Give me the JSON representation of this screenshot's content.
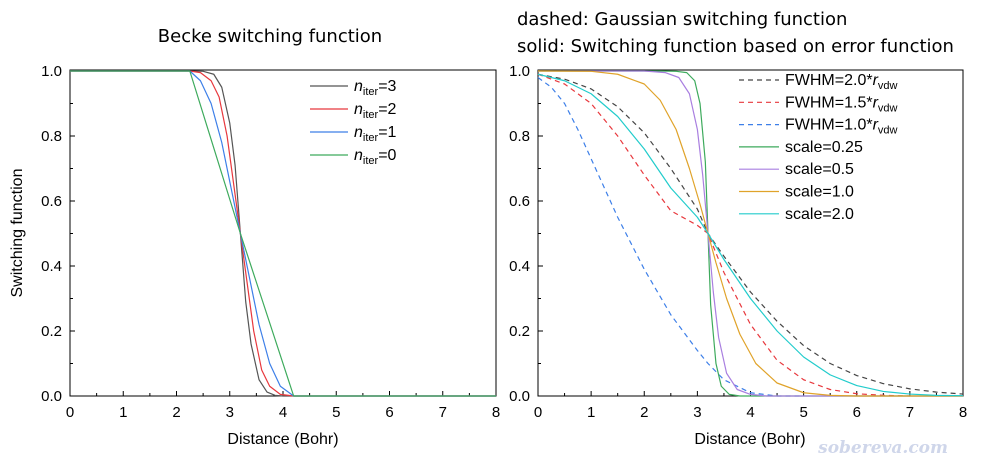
{
  "watermark": "sobereva.com",
  "chart_data": [
    {
      "type": "line",
      "title": "Becke switching function",
      "xlabel": "Distance (Bohr)",
      "ylabel": "Switching function",
      "xlim": [
        0,
        8
      ],
      "ylim": [
        0,
        1
      ],
      "xticks": [
        "0",
        "1",
        "2",
        "3",
        "4",
        "5",
        "6",
        "7",
        "8"
      ],
      "yticks": [
        "0.0",
        "0.2",
        "0.4",
        "0.6",
        "0.8",
        "1.0"
      ],
      "legend_position": "top-right",
      "series": [
        {
          "name_main": "n",
          "name_sub": "iter",
          "name_tail": "=3",
          "color": "#555555",
          "dash": "solid",
          "x": [
            0,
            2.25,
            2.5,
            2.7,
            2.85,
            3.0,
            3.1,
            3.2,
            3.3,
            3.4,
            3.55,
            3.7,
            3.85,
            4.0,
            4.2,
            8
          ],
          "y": [
            1.0,
            1.0,
            0.999,
            0.99,
            0.95,
            0.84,
            0.71,
            0.5,
            0.29,
            0.16,
            0.05,
            0.012,
            0.002,
            0.0,
            0.0,
            0.0
          ]
        },
        {
          "name_main": "n",
          "name_sub": "iter",
          "name_tail": "=2",
          "color": "#e8383d",
          "dash": "solid",
          "x": [
            0,
            2.25,
            2.45,
            2.65,
            2.8,
            2.95,
            3.1,
            3.2,
            3.3,
            3.45,
            3.6,
            3.75,
            3.95,
            4.2,
            8
          ],
          "y": [
            1.0,
            1.0,
            0.995,
            0.97,
            0.92,
            0.8,
            0.62,
            0.5,
            0.38,
            0.2,
            0.08,
            0.03,
            0.005,
            0.0,
            0.0
          ]
        },
        {
          "name_main": "n",
          "name_sub": "iter",
          "name_tail": "=1",
          "color": "#3d7fe8",
          "dash": "solid",
          "x": [
            0,
            2.25,
            2.45,
            2.65,
            2.85,
            3.05,
            3.2,
            3.35,
            3.55,
            3.75,
            3.95,
            4.2,
            8
          ],
          "y": [
            1.0,
            1.0,
            0.97,
            0.9,
            0.78,
            0.62,
            0.5,
            0.38,
            0.22,
            0.1,
            0.03,
            0.0,
            0.0
          ]
        },
        {
          "name_main": "n",
          "name_sub": "iter",
          "name_tail": "=0",
          "color": "#3daa5c",
          "dash": "solid",
          "x": [
            0,
            2.25,
            3.2,
            4.2,
            8
          ],
          "y": [
            1.0,
            1.0,
            0.5,
            0.0,
            0.0
          ]
        }
      ]
    },
    {
      "type": "line",
      "title": "dashed: Gaussian switching function",
      "subtitle": "solid: Switching function based on error function",
      "xlabel": "Distance (Bohr)",
      "ylabel": "",
      "xlim": [
        0,
        8
      ],
      "ylim": [
        0,
        1
      ],
      "xticks": [
        "0",
        "1",
        "2",
        "3",
        "4",
        "5",
        "6",
        "7",
        "8"
      ],
      "yticks": [
        "0.0",
        "0.2",
        "0.4",
        "0.6",
        "0.8",
        "1.0"
      ],
      "legend_position": "top-right",
      "series": [
        {
          "name_main": "FWHM=2.0*r",
          "name_sub": "vdw",
          "color": "#444444",
          "dash": "dashed",
          "x": [
            0,
            0.5,
            1.0,
            1.5,
            2.0,
            2.5,
            3.0,
            3.2,
            3.5,
            4.0,
            4.5,
            5.0,
            5.5,
            6.0,
            6.5,
            7.0,
            7.5,
            8.0
          ],
          "y": [
            0.99,
            0.975,
            0.945,
            0.89,
            0.81,
            0.7,
            0.575,
            0.5,
            0.43,
            0.32,
            0.23,
            0.155,
            0.1,
            0.063,
            0.038,
            0.022,
            0.012,
            0.006
          ]
        },
        {
          "name_main": "FWHM=1.5*r",
          "name_sub": "vdw",
          "color": "#e8383d",
          "dash": "dashed",
          "x": [
            0,
            0.5,
            1.0,
            1.5,
            2.0,
            2.5,
            3.0,
            3.2,
            3.5,
            4.0,
            4.5,
            5.0,
            5.5,
            6.0,
            6.5,
            7.0
          ],
          "y": [
            0.99,
            0.96,
            0.9,
            0.8,
            0.68,
            0.57,
            0.525,
            0.5,
            0.38,
            0.22,
            0.11,
            0.05,
            0.02,
            0.007,
            0.002,
            0.0
          ]
        },
        {
          "name_main": "FWHM=1.0*r",
          "name_sub": "vdw",
          "color": "#3d7fe8",
          "dash": "dashed",
          "x": [
            0,
            0.25,
            0.5,
            0.75,
            1.0,
            1.5,
            2.0,
            2.5,
            3.0,
            3.2,
            3.5,
            4.0,
            4.5,
            5.0
          ],
          "y": [
            0.98,
            0.95,
            0.9,
            0.82,
            0.73,
            0.55,
            0.39,
            0.25,
            0.14,
            0.1,
            0.05,
            0.01,
            0.0,
            0.0
          ]
        },
        {
          "name_main": "scale=0.25",
          "color": "#3daa5c",
          "dash": "solid",
          "x": [
            0,
            2.3,
            2.6,
            2.8,
            2.95,
            3.05,
            3.15,
            3.2,
            3.25,
            3.35,
            3.45,
            3.6,
            3.8,
            4.1,
            8
          ],
          "y": [
            1.0,
            1.0,
            0.999,
            0.995,
            0.97,
            0.9,
            0.72,
            0.5,
            0.28,
            0.1,
            0.03,
            0.005,
            0.0,
            0.0,
            0.0
          ]
        },
        {
          "name_main": "scale=0.5",
          "color": "#a97fe0",
          "dash": "solid",
          "x": [
            0,
            2.0,
            2.4,
            2.65,
            2.85,
            3.0,
            3.1,
            3.2,
            3.3,
            3.4,
            3.55,
            3.75,
            4.0,
            4.3,
            8
          ],
          "y": [
            1.0,
            1.0,
            0.995,
            0.98,
            0.93,
            0.82,
            0.68,
            0.5,
            0.32,
            0.18,
            0.07,
            0.02,
            0.005,
            0.0,
            0.0
          ]
        },
        {
          "name_main": "scale=1.0",
          "color": "#e0a32a",
          "dash": "solid",
          "x": [
            0,
            1.0,
            1.5,
            2.0,
            2.3,
            2.6,
            2.85,
            3.05,
            3.2,
            3.35,
            3.55,
            3.8,
            4.1,
            4.5,
            5.0,
            5.5,
            6.0,
            8
          ],
          "y": [
            1.0,
            0.999,
            0.99,
            0.96,
            0.91,
            0.82,
            0.7,
            0.59,
            0.5,
            0.41,
            0.3,
            0.19,
            0.1,
            0.04,
            0.01,
            0.002,
            0.0,
            0.0
          ]
        },
        {
          "name_main": "scale=2.0",
          "color": "#22cccc",
          "dash": "solid",
          "x": [
            0,
            0.5,
            1.0,
            1.5,
            2.0,
            2.5,
            3.0,
            3.2,
            3.5,
            4.0,
            4.5,
            5.0,
            5.5,
            6.0,
            6.5,
            7.0,
            7.5,
            8.0
          ],
          "y": [
            0.99,
            0.97,
            0.93,
            0.86,
            0.76,
            0.64,
            0.55,
            0.5,
            0.42,
            0.3,
            0.2,
            0.12,
            0.065,
            0.032,
            0.014,
            0.006,
            0.002,
            0.001
          ]
        }
      ]
    }
  ]
}
